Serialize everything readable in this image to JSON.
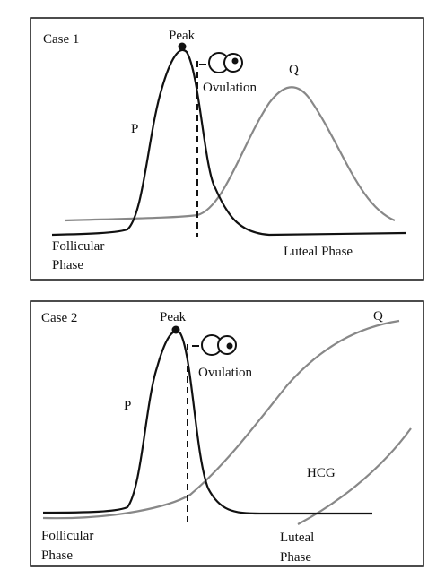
{
  "panels": [
    {
      "title": "Case 1",
      "peak": "Peak",
      "ovulation": "Ovulation",
      "p": "P",
      "q": "Q",
      "follicular_phase": [
        "Follicular",
        "Phase"
      ],
      "luteal_phase": [
        "Luteal Phase"
      ]
    },
    {
      "title": "Case 2",
      "peak": "Peak",
      "ovulation": "Ovulation",
      "p": "P",
      "q": "Q",
      "hcg": "HCG",
      "follicular_phase": [
        "Follicular",
        "Phase"
      ],
      "luteal_phase": [
        "Luteal",
        "Phase"
      ]
    }
  ]
}
